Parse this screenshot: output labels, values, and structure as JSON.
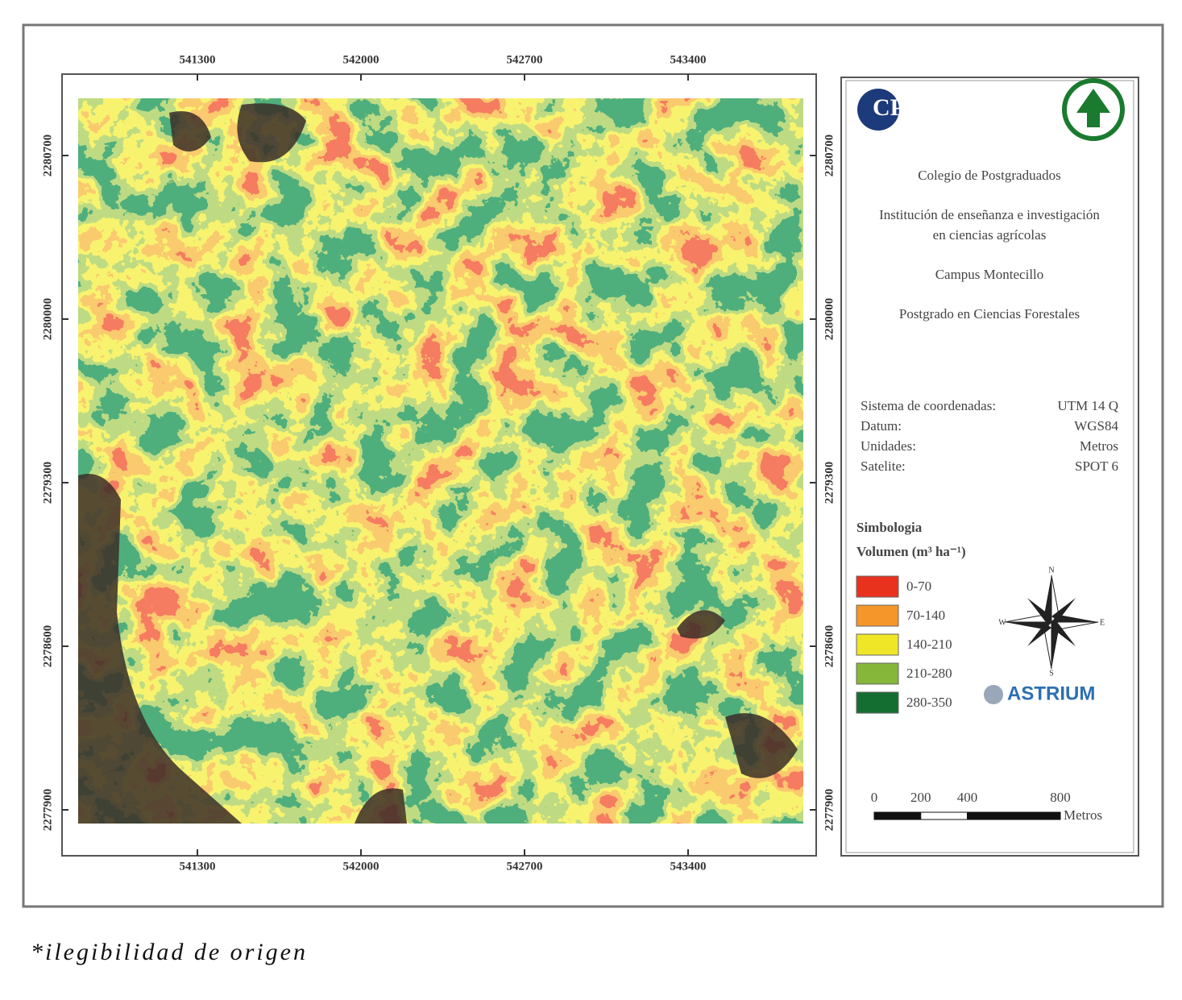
{
  "map": {
    "x_ticks": [
      541300,
      542000,
      542700,
      543400
    ],
    "y_ticks": [
      2280700,
      2280000,
      2279300,
      2278600,
      2277900
    ]
  },
  "panel": {
    "logo": "CP",
    "institution": "Colegio de Postgraduados",
    "description": [
      "Institución de enseñanza e investigación",
      "en ciencias agrícolas"
    ],
    "campus": "Campus Montecillo",
    "program": "Postgrado en Ciencias Forestales",
    "info": [
      [
        "Sistema de coordenadas:",
        "UTM 14 Q"
      ],
      [
        "Datum:",
        "WGS84"
      ],
      [
        "Unidades:",
        "Metros"
      ],
      [
        "Satelite:",
        "SPOT 6"
      ]
    ],
    "legend": {
      "title": "Simbologia",
      "subtitle": "Volumen (m³ ha⁻¹)",
      "items": [
        {
          "label": "0-70",
          "color": "#e8321e"
        },
        {
          "label": "70-140",
          "color": "#f5962a"
        },
        {
          "label": "140-210",
          "color": "#f0e628"
        },
        {
          "label": "210-280",
          "color": "#86b63a"
        },
        {
          "label": "280-350",
          "color": "#146e32"
        }
      ]
    },
    "compass": {
      "n": "N",
      "s": "S",
      "e": "E",
      "w": "W"
    },
    "brand": "ASTRIUM",
    "scale": {
      "ticks": [
        0,
        200,
        400,
        800
      ],
      "unit": "Metros"
    }
  },
  "footnote": "*ilegibilidad de origen"
}
